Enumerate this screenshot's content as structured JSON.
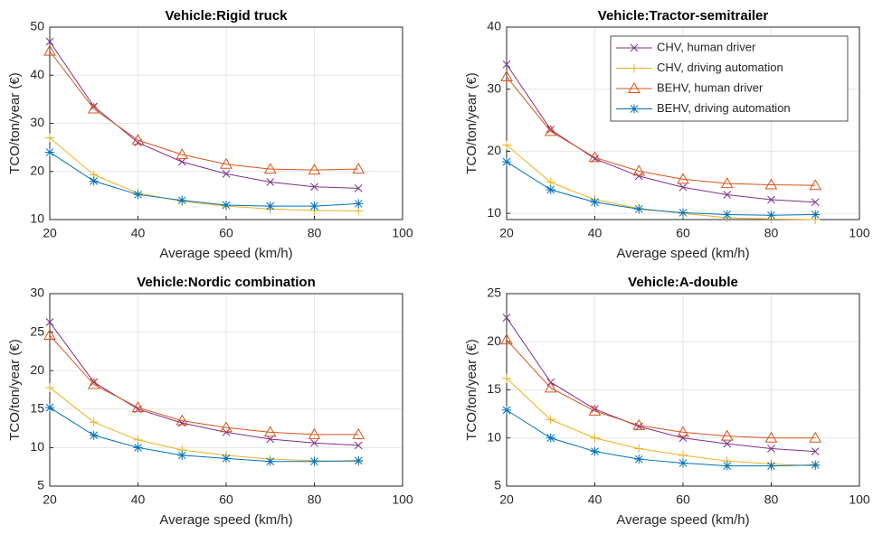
{
  "chart_data": [
    {
      "type": "line",
      "title": "Vehicle:Rigid truck",
      "xlabel": "Average speed (km/h)",
      "ylabel": "TCO/ton/year (€)",
      "x": [
        20,
        30,
        40,
        50,
        60,
        70,
        80,
        90
      ],
      "xlim": [
        20,
        100
      ],
      "xticks": [
        20,
        40,
        60,
        80,
        100
      ],
      "ylim": [
        10,
        50
      ],
      "yticks": [
        10,
        20,
        30,
        40,
        50
      ],
      "grid": true,
      "series": [
        {
          "color": "#7E2F8E",
          "marker": "x",
          "values": [
            47,
            33.5,
            26,
            22,
            19.5,
            17.8,
            16.8,
            16.5
          ]
        },
        {
          "color": "#EDB120",
          "marker": "+",
          "values": [
            27,
            19.3,
            15.5,
            13.8,
            12.8,
            12.2,
            11.9,
            11.8
          ]
        },
        {
          "color": "#D95319",
          "marker": "triangle",
          "values": [
            45,
            33,
            26.5,
            23.5,
            21.5,
            20.5,
            20.3,
            20.5
          ]
        },
        {
          "color": "#0072BD",
          "marker": "asterisk",
          "values": [
            24,
            18,
            15.2,
            14,
            13,
            12.8,
            12.8,
            13.3
          ]
        }
      ]
    },
    {
      "type": "line",
      "title": "Vehicle:Tractor-semitrailer",
      "xlabel": "Average speed (km/h)",
      "ylabel": "TCO/ton/year (€)",
      "x": [
        20,
        30,
        40,
        50,
        60,
        70,
        80,
        90
      ],
      "xlim": [
        20,
        100
      ],
      "xticks": [
        20,
        40,
        60,
        80,
        100
      ],
      "ylim": [
        9,
        40
      ],
      "yticks": [
        10,
        20,
        30,
        40
      ],
      "grid": true,
      "legend": "northeast",
      "series": [
        {
          "name": "CHV, human driver",
          "color": "#7E2F8E",
          "marker": "x",
          "values": [
            34,
            23.5,
            18.8,
            16,
            14.2,
            13,
            12.2,
            11.8
          ]
        },
        {
          "name": "CHV, driving automation",
          "color": "#EDB120",
          "marker": "+",
          "values": [
            21,
            15,
            12.2,
            10.8,
            10,
            9.3,
            9.1,
            9
          ]
        },
        {
          "name": "BEHV, human driver",
          "color": "#D95319",
          "marker": "triangle",
          "values": [
            32,
            23.2,
            19,
            16.8,
            15.5,
            14.8,
            14.6,
            14.5
          ]
        },
        {
          "name": "BEHV, driving automation",
          "color": "#0072BD",
          "marker": "asterisk",
          "values": [
            18.3,
            13.8,
            11.8,
            10.7,
            10.1,
            9.8,
            9.7,
            9.8
          ]
        }
      ]
    },
    {
      "type": "line",
      "title": "Vehicle:Nordic combination",
      "xlabel": "Average speed (km/h)",
      "ylabel": "TCO/ton/year (€)",
      "x": [
        20,
        30,
        40,
        50,
        60,
        70,
        80,
        90
      ],
      "xlim": [
        20,
        100
      ],
      "xticks": [
        20,
        40,
        60,
        80,
        100
      ],
      "ylim": [
        5,
        30
      ],
      "yticks": [
        5,
        10,
        15,
        20,
        25,
        30
      ],
      "grid": true,
      "series": [
        {
          "color": "#7E2F8E",
          "marker": "x",
          "values": [
            26.3,
            18.5,
            15,
            13.2,
            12,
            11.1,
            10.6,
            10.3
          ]
        },
        {
          "color": "#EDB120",
          "marker": "+",
          "values": [
            17.8,
            13.3,
            11,
            9.7,
            9,
            8.5,
            8.3,
            8.2
          ]
        },
        {
          "color": "#D95319",
          "marker": "triangle",
          "values": [
            24.6,
            18.2,
            15.2,
            13.5,
            12.6,
            12,
            11.7,
            11.7
          ]
        },
        {
          "color": "#0072BD",
          "marker": "asterisk",
          "values": [
            15.2,
            11.6,
            10,
            9,
            8.6,
            8.2,
            8.2,
            8.3
          ]
        }
      ]
    },
    {
      "type": "line",
      "title": "Vehicle:A-double",
      "xlabel": "Average speed (km/h)",
      "ylabel": "TCO/ton/year (€)",
      "x": [
        20,
        30,
        40,
        50,
        60,
        70,
        80,
        90
      ],
      "xlim": [
        20,
        100
      ],
      "xticks": [
        20,
        40,
        60,
        80,
        100
      ],
      "ylim": [
        5,
        25
      ],
      "yticks": [
        5,
        10,
        15,
        20,
        25
      ],
      "grid": true,
      "series": [
        {
          "color": "#7E2F8E",
          "marker": "x",
          "values": [
            22.5,
            15.8,
            13,
            11.2,
            10,
            9.4,
            8.9,
            8.6
          ]
        },
        {
          "color": "#EDB120",
          "marker": "+",
          "values": [
            16.2,
            11.9,
            10,
            8.9,
            8.2,
            7.6,
            7.3,
            7.1
          ]
        },
        {
          "color": "#D95319",
          "marker": "triangle",
          "values": [
            20.2,
            15.2,
            12.8,
            11.3,
            10.6,
            10.2,
            10,
            10
          ]
        },
        {
          "color": "#0072BD",
          "marker": "asterisk",
          "values": [
            12.9,
            10,
            8.6,
            7.8,
            7.4,
            7.1,
            7.1,
            7.2
          ]
        }
      ]
    }
  ]
}
